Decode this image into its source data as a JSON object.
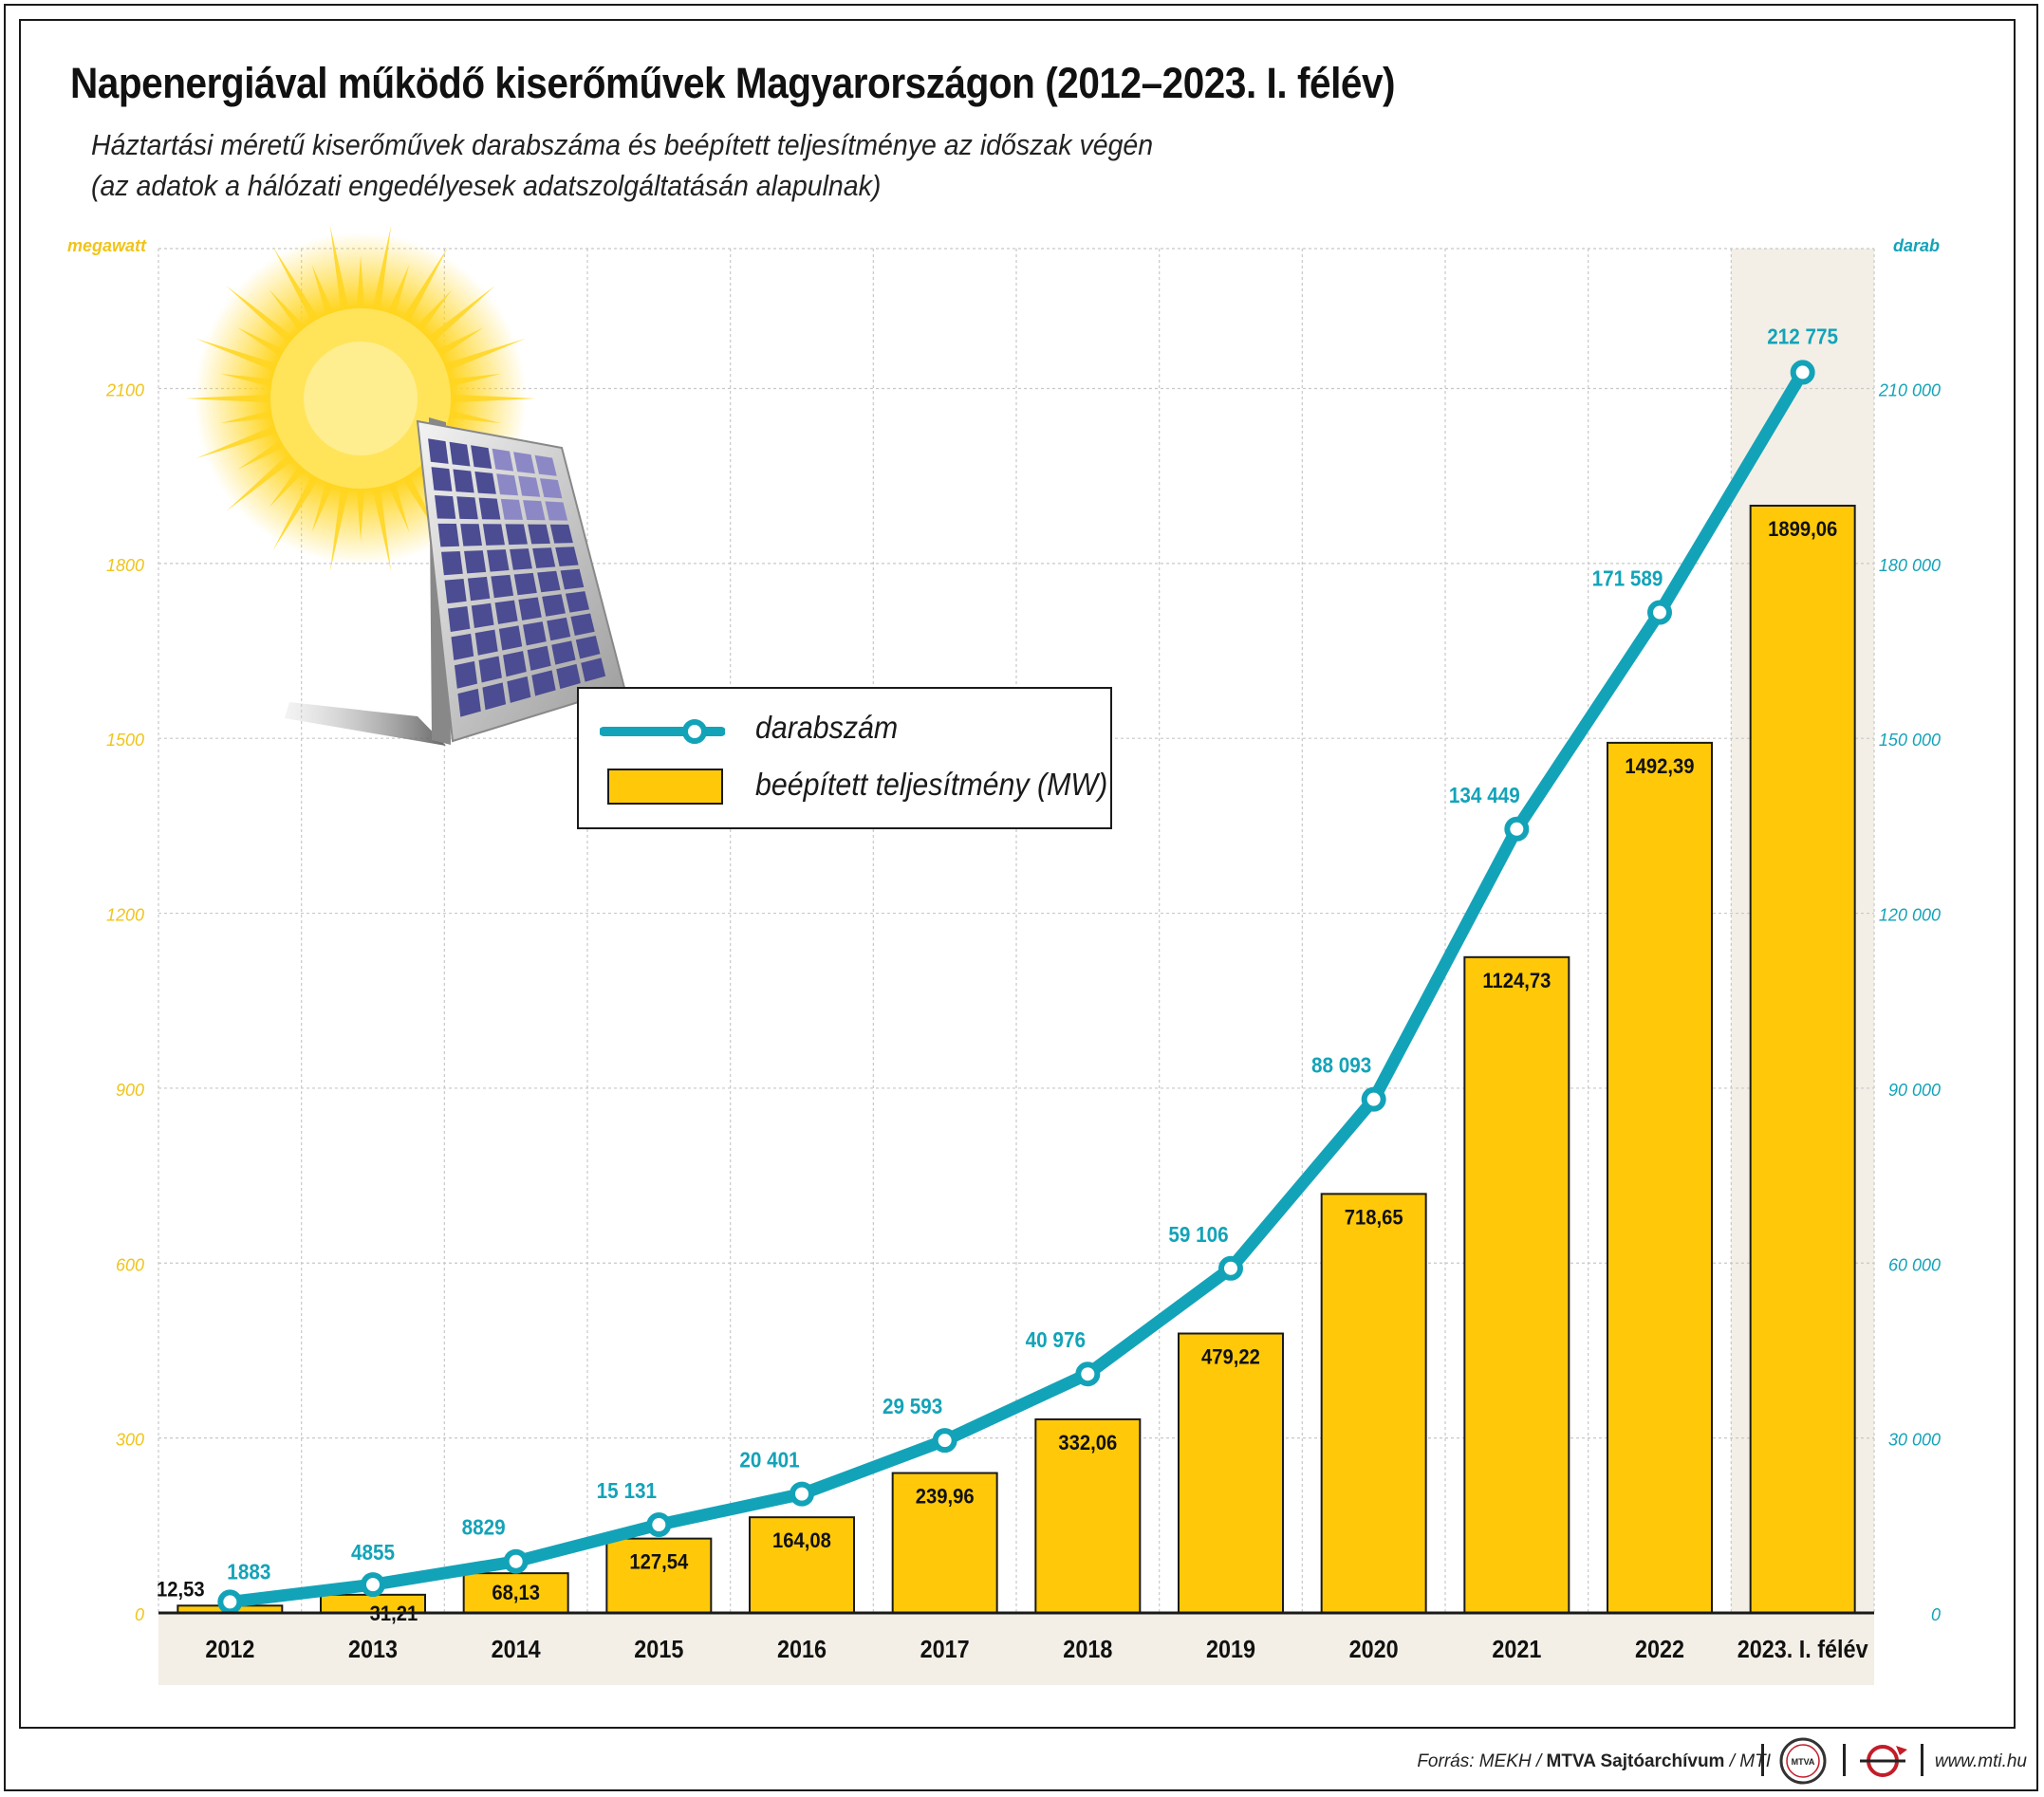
{
  "title": "Napenergiával működő kiserőművek Magyarországon (2012–2023. I. félév)",
  "subtitle_line1": "Háztartási méretű kiserőművek darabszáma és beépített teljesítménye az időszak végén",
  "subtitle_line2": "(az adatok a hálózati engedélyesek adatszolgáltatásán alapulnak)",
  "colors": {
    "bar": "#ffc90a",
    "line": "#13a3b8",
    "left_axis": "#f0c419",
    "right_axis": "#13a3b8",
    "highlight": "#f3efe6"
  },
  "legend": {
    "line_label": "darabszám",
    "bar_label": "beépített teljesítmény (MW)"
  },
  "footer": {
    "source_prefix": "Forrás: MEKH / ",
    "source_bold": "MTVA Sajtóarchívum",
    "source_suffix": " / MTI",
    "website": "www.mti.hu",
    "logo_text": "MTVA"
  },
  "chart_data": {
    "type": "bar",
    "categories": [
      "2012",
      "2013",
      "2014",
      "2015",
      "2016",
      "2017",
      "2018",
      "2019",
      "2020",
      "2021",
      "2022",
      "2023. I. félév"
    ],
    "left_axis": {
      "label": "megawatt",
      "ticks": [
        "0",
        "300",
        "600",
        "900",
        "1200",
        "1500",
        "1800",
        "2100"
      ],
      "ylim": [
        0,
        2340
      ]
    },
    "right_axis": {
      "label": "darab",
      "ticks": [
        "0",
        "30 000",
        "60 000",
        "90 000",
        "120 000",
        "150 000",
        "180 000",
        "210 000"
      ],
      "ylim": [
        0,
        234000
      ]
    },
    "series": [
      {
        "name": "beépített teljesítmény (MW)",
        "type": "bar",
        "axis": "left",
        "values": [
          12.53,
          31.21,
          68.13,
          127.54,
          164.08,
          239.96,
          332.06,
          479.22,
          718.65,
          1124.73,
          1492.39,
          1899.06
        ],
        "labels": [
          "12,53",
          "31,21",
          "68,13",
          "127,54",
          "164,08",
          "239,96",
          "332,06",
          "479,22",
          "718,65",
          "1124,73",
          "1492,39",
          "1899,06"
        ]
      },
      {
        "name": "darabszám",
        "type": "line",
        "axis": "right",
        "values": [
          1883,
          4855,
          8829,
          15131,
          20401,
          29593,
          40976,
          59106,
          88093,
          134449,
          171589,
          212775
        ],
        "labels": [
          "1883",
          "4855",
          "8829",
          "15 131",
          "20 401",
          "29 593",
          "40 976",
          "59 106",
          "88 093",
          "134 449",
          "171 589",
          "212 775"
        ]
      }
    ],
    "grid": true,
    "highlighted_category": "2023. I. félév"
  }
}
